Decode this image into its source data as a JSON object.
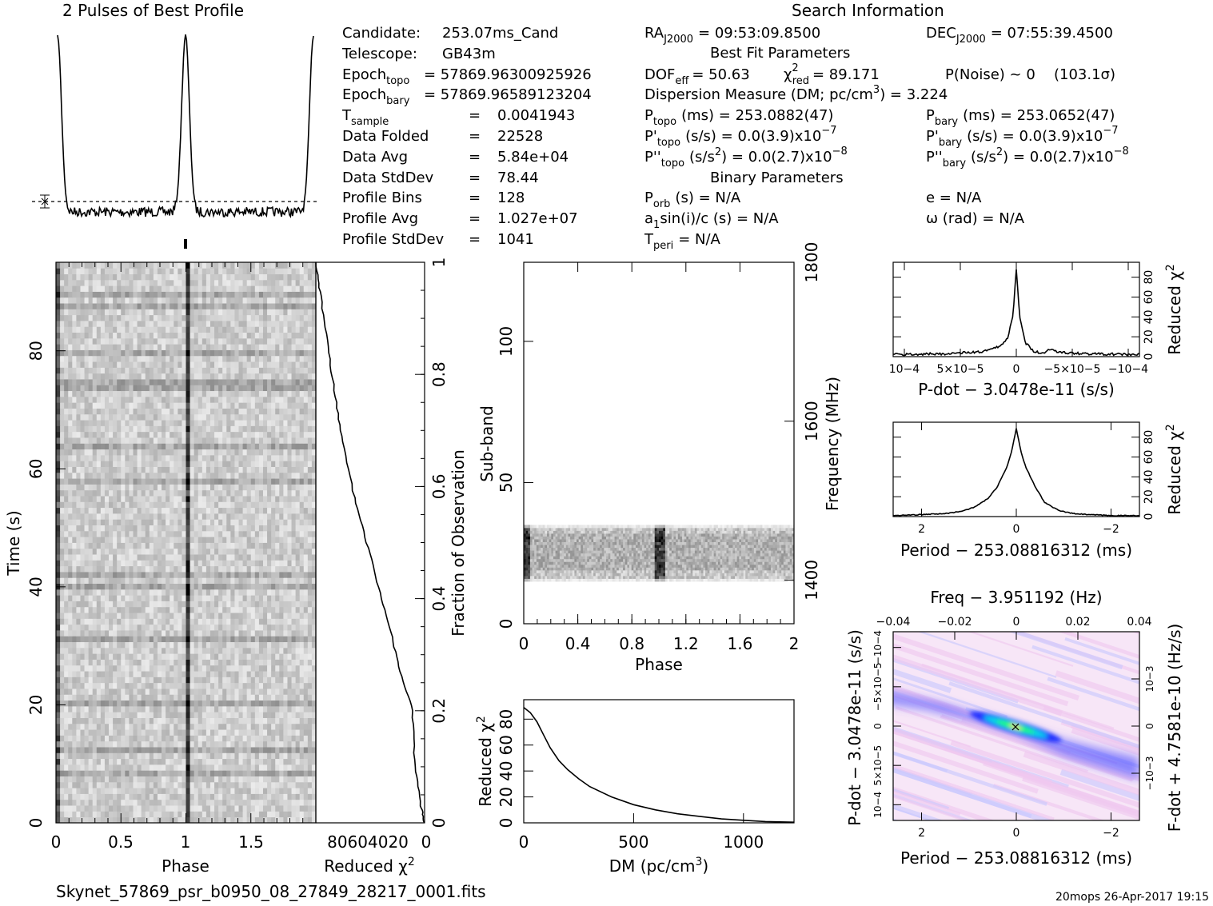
{
  "title_profile": "2 Pulses of Best Profile",
  "title_search": "Search Information",
  "footer_file": "Skynet_57869_psr_b0950_08_27849_28217_0001.fits",
  "footer_stamp": "20mops 26-Apr-2017 19:15",
  "candidate": {
    "candidate_label": "Candidate:",
    "candidate_val": "253.07ms_Cand",
    "telescope_label": "Telescope:",
    "telescope_val": "GB43m",
    "epoch_topo_label": "Epoch",
    "epoch_topo_sub": "topo",
    "epoch_topo_val": "= 57869.96300925926",
    "epoch_bary_label": "Epoch",
    "epoch_bary_sub": "bary",
    "epoch_bary_val": "= 57869.96589123204",
    "tsample_label": "T",
    "tsample_sub": "sample",
    "tsample_val": "0.0041943",
    "folded_label": "Data Folded",
    "folded_val": "22528",
    "avg_label": "Data Avg",
    "avg_val": "5.84e+04",
    "std_label": "Data StdDev",
    "std_val": "78.44",
    "bins_label": "Profile Bins",
    "bins_val": "128",
    "pavg_label": "Profile Avg",
    "pavg_val": "1.027e+07",
    "pstd_label": "Profile StdDev",
    "pstd_val": "1041",
    "eq": "="
  },
  "search": {
    "ra_label": "RA",
    "ra_sub": "J2000",
    "ra_val": "= 09:53:09.8500",
    "dec_label": "DEC",
    "dec_sub": "J2000",
    "dec_val": "= 07:55:39.4500",
    "best_fit_heading": "Best Fit Parameters",
    "dof_label": "DOF",
    "dof_sub": "eff",
    "dof_val": "= 50.63",
    "chi_label": "χ",
    "chi_sup": "2",
    "chi_sub": "red",
    "chi_val": "= 89.171",
    "pnoise": "P(Noise) ~ 0",
    "sigma": "(103.1σ)",
    "dm_text": "Dispersion Measure (DM; pc/cm",
    "dm_sup": "3",
    "dm_val": ") = 3.224",
    "ptopo_label": "P",
    "ptopo_sub": "topo",
    "ptopo_val": "(ms) =  253.0882(47)",
    "pbary_label": "P",
    "pbary_sub": "bary",
    "pbary_val": "(ms) =  253.0652(47)",
    "pdtopo_label": "P'",
    "pdtopo_sub": "topo",
    "pdtopo_val": "(s/s) = 0.0(3.9)x10",
    "pdtopo_exp": "−7",
    "pdbary_label": "P'",
    "pdbary_sub": "bary",
    "pdbary_val": "(s/s) = 0.0(3.9)x10",
    "pdbary_exp": "−7",
    "pddtopo_label": "P''",
    "pddtopo_sub": "topo",
    "pddtopo_val": "(s/s",
    "pddtopo_sup": "2",
    "pddtopo_val2": ") = 0.0(2.7)x10",
    "pddtopo_exp": "−8",
    "pddbary_label": "P''",
    "pddbary_sub": "bary",
    "pddbary_val": "(s/s",
    "pddbary_sup": "2",
    "pddbary_val2": ") = 0.0(2.7)x10",
    "pddbary_exp": "−8",
    "binary_heading": "Binary Parameters",
    "porb_label": "P",
    "porb_sub": "orb",
    "porb_val": "(s) = N/A",
    "ecc": "e = N/A",
    "a1_label": "a",
    "a1_sub": "1",
    "a1_val": "sin(i)/c (s) = N/A",
    "omega": "ω (rad) = N/A",
    "tperi_label": "T",
    "tperi_sub": "peri",
    "tperi_val": "= N/A"
  },
  "chart_data": [
    {
      "type": "line",
      "name": "profile",
      "title": "2 Pulses of Best Profile",
      "xlim": [
        0,
        2
      ],
      "peaks_phase": [
        1.0
      ],
      "baseline_marker": "dotted line with error bar"
    },
    {
      "type": "heatmap",
      "name": "time-phase",
      "xlabel": "Phase",
      "ylabel": "Time (s)",
      "x_ticks": [
        "0",
        "0.5",
        "1",
        "1.5"
      ],
      "y_ticks": [
        "0",
        "20",
        "40",
        "60",
        "80"
      ],
      "xlim": [
        0,
        2
      ],
      "ylim": [
        0,
        95
      ],
      "pulse_phase": 1.0
    },
    {
      "type": "line",
      "name": "chi2-vs-time",
      "xlabel": "Reduced χ2",
      "ylabel": "Fraction of Observation",
      "x_ticks": [
        "80",
        "60",
        "40",
        "20",
        "0"
      ],
      "y_ticks": [
        "0",
        "0.2",
        "0.4",
        "0.6",
        "0.8",
        "1"
      ],
      "xlim": [
        90,
        0
      ],
      "ylim": [
        0,
        1
      ],
      "x": [
        0,
        3,
        8,
        10,
        20,
        28,
        38,
        48,
        58,
        68,
        74,
        80,
        86,
        90
      ],
      "y": [
        0,
        0.03,
        0.1,
        0.2,
        0.27,
        0.34,
        0.42,
        0.5,
        0.58,
        0.68,
        0.76,
        0.85,
        0.94,
        1.0
      ]
    },
    {
      "type": "heatmap",
      "name": "subband-phase",
      "xlabel": "Phase",
      "ylabel": "Sub-band",
      "y2label": "Frequency (MHz)",
      "x_ticks": [
        "0",
        "0.4",
        "0.8",
        "1.2",
        "1.6",
        "2"
      ],
      "y_ticks": [
        "0",
        "50",
        "100"
      ],
      "y2_ticks": [
        "1400",
        "1600",
        "1800"
      ],
      "xlim": [
        0,
        2
      ],
      "ylim": [
        0,
        128
      ],
      "occupied_subbands": [
        15,
        35
      ],
      "pulse_phase": [
        0.0,
        1.0
      ]
    },
    {
      "type": "line",
      "name": "chi2-vs-dm",
      "xlabel": "DM (pc/cm3)",
      "ylabel": "Reduced χ2",
      "x_ticks": [
        "0",
        "500",
        "1000"
      ],
      "y_ticks": [
        "0",
        "20",
        "40",
        "60",
        "80"
      ],
      "xlim": [
        0,
        1230
      ],
      "ylim": [
        0,
        95
      ],
      "x": [
        0,
        30,
        60,
        90,
        120,
        160,
        200,
        250,
        300,
        400,
        500,
        600,
        700,
        800,
        900,
        1000,
        1100,
        1230
      ],
      "y": [
        89,
        85,
        78,
        68,
        58,
        48,
        41,
        34,
        28,
        20,
        14,
        10,
        7,
        5,
        3,
        2,
        1,
        0.5
      ]
    },
    {
      "type": "line",
      "name": "chi2-vs-pdot",
      "xlabel": "P-dot − 3.0478e-11 (s/s)",
      "ylabel": "Reduced χ2",
      "x_ticks": [
        "10−4",
        "5×10−5",
        "0",
        "−5×10−5",
        "−10−4"
      ],
      "y_ticks": [
        "0",
        "20",
        "40",
        "60",
        "80"
      ],
      "xlim": [
        0.00011,
        -0.00011
      ],
      "ylim": [
        0,
        95
      ],
      "x": [
        0.00011,
        6e-05,
        3e-05,
        1.5e-05,
        8e-06,
        3e-06,
        0,
        -3e-06,
        -8e-06,
        -1.5e-05,
        -2.5e-05,
        -3e-05,
        -4e-05,
        -6e-05,
        -0.00011
      ],
      "y": [
        2,
        3,
        5,
        10,
        18,
        40,
        89,
        40,
        14,
        6,
        3,
        8,
        4,
        3,
        2
      ]
    },
    {
      "type": "line",
      "name": "chi2-vs-period",
      "xlabel": "Period − 253.08816312 (ms)",
      "ylabel": "Reduced χ2",
      "x_ticks": [
        "2",
        "0",
        "−2"
      ],
      "y_ticks": [
        "0",
        "20",
        "40",
        "60",
        "80"
      ],
      "xlim": [
        2.6,
        -2.6
      ],
      "ylim": [
        0,
        95
      ],
      "x": [
        2.6,
        2.0,
        1.5,
        1.2,
        0.9,
        0.6,
        0.4,
        0.2,
        0.1,
        0,
        -0.1,
        -0.2,
        -0.4,
        -0.6,
        -0.9,
        -1.2,
        -1.5,
        -2.0,
        -2.6
      ],
      "y": [
        1,
        2,
        3,
        5,
        9,
        18,
        30,
        50,
        65,
        89,
        65,
        50,
        30,
        14,
        6,
        3,
        2,
        1,
        1
      ]
    },
    {
      "type": "heatmap",
      "name": "period-pdot",
      "title": "Freq − 3.951192 (Hz)",
      "xlabel": "Period − 253.08816312 (ms)",
      "ylabel": "P-dot − 3.0478e-11 (s/s)",
      "y2label": "F-dot + 4.7581e-10 (Hz/s)",
      "x_ticks": [
        "2",
        "0",
        "−2"
      ],
      "x2_ticks": [
        "−0.04",
        "−0.02",
        "0",
        "0.02",
        "0.04"
      ],
      "y_ticks": [
        "10−4",
        "5×10−5",
        "0",
        "−5×10−5",
        "−10−4"
      ],
      "y2_ticks": [
        "−10−3",
        "0",
        "10−3"
      ],
      "xlim": [
        2.6,
        -2.6
      ],
      "peak": [
        0,
        0
      ]
    }
  ],
  "colors": {
    "ink": "#000000",
    "heat_blue": "#4040ff",
    "heat_cyan": "#00e0e0",
    "heat_green": "#20ff60",
    "heat_pink": "#f4d6f4"
  },
  "labels": {
    "phase": "Phase",
    "time": "Time (s)",
    "reduced_chi": "Reduced χ",
    "chi_sup": "2",
    "fraction": "Fraction of Observation",
    "subband": "Sub-band",
    "frequency": "Frequency (MHz)",
    "dm_axis": "DM (pc/cm",
    "dm_axis_sup": "3",
    "dm_axis_end": ")",
    "pdot_axis": "P-dot − 3.0478e-11 (s/s)",
    "period_axis": "Period − 253.08816312 (ms)",
    "freq_axis": "Freq − 3.951192 (Hz)",
    "fdot_axis": "F-dot + 4.7581e-10 (Hz/s)",
    "pdot_axis_left": "P-dot − 3.0478e-11 (s/s)"
  }
}
